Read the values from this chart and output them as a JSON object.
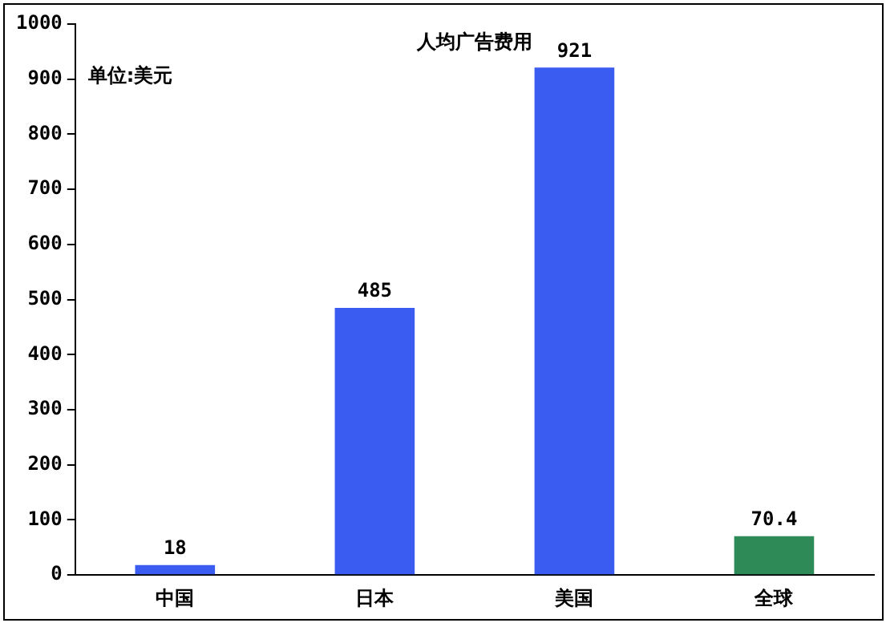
{
  "chart_data": {
    "type": "bar",
    "title": "人均广告费用",
    "annotations": [
      "单位:美元"
    ],
    "categories": [
      "中国",
      "日本",
      "美国",
      "全球"
    ],
    "values": [
      18,
      485,
      921,
      70.4
    ],
    "colors": [
      "#3a5cf0",
      "#3a5cf0",
      "#3a5cf0",
      "#2e8b57"
    ],
    "ylim": [
      0,
      1000
    ],
    "yticks": [
      0,
      100,
      200,
      300,
      400,
      500,
      600,
      700,
      800,
      900,
      1000
    ],
    "grid": false,
    "legend": false,
    "data_labels": true
  }
}
